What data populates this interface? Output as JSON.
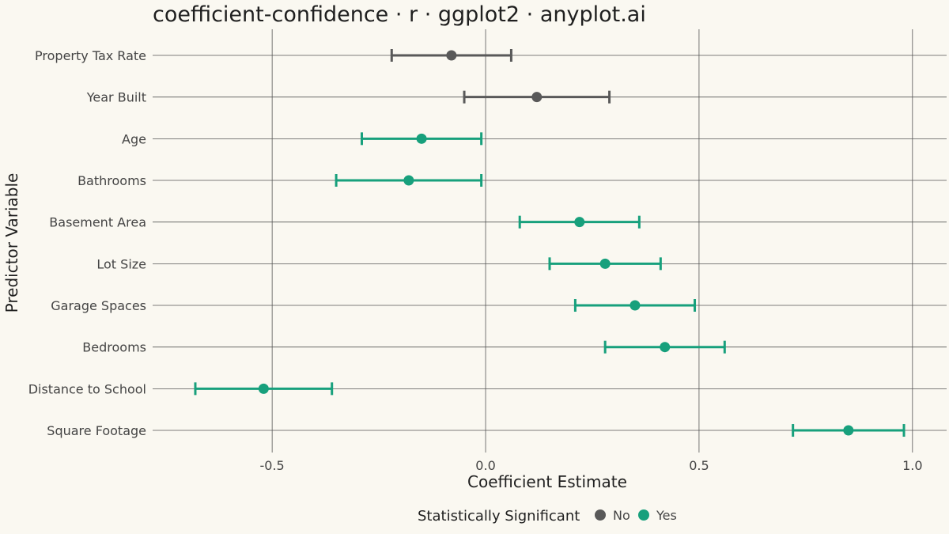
{
  "chart_data": {
    "type": "scatter",
    "title": "coefficient-confidence · r · ggplot2 · anyplot.ai",
    "xlabel": "Coefficient Estimate",
    "ylabel": "Predictor Variable",
    "xlim": [
      -0.78,
      1.08
    ],
    "xticks": [
      -0.5,
      0.0,
      0.5,
      1.0
    ],
    "xtick_labels": [
      "-0.5",
      "0.0",
      "0.5",
      "1.0"
    ],
    "grid": true,
    "legend": {
      "title": "Statistically Significant",
      "position": "bottom",
      "items": [
        {
          "label": "No",
          "color": "#595959"
        },
        {
          "label": "Yes",
          "color": "#17A07C"
        }
      ]
    },
    "colors": {
      "No": "#595959",
      "Yes": "#17A07C"
    },
    "points": [
      {
        "variable": "Property Tax Rate",
        "estimate": -0.08,
        "lower": -0.22,
        "upper": 0.06,
        "significant": "No"
      },
      {
        "variable": "Year Built",
        "estimate": 0.12,
        "lower": -0.05,
        "upper": 0.29,
        "significant": "No"
      },
      {
        "variable": "Age",
        "estimate": -0.15,
        "lower": -0.29,
        "upper": -0.01,
        "significant": "Yes"
      },
      {
        "variable": "Bathrooms",
        "estimate": -0.18,
        "lower": -0.35,
        "upper": -0.01,
        "significant": "Yes"
      },
      {
        "variable": "Basement Area",
        "estimate": 0.22,
        "lower": 0.08,
        "upper": 0.36,
        "significant": "Yes"
      },
      {
        "variable": "Lot Size",
        "estimate": 0.28,
        "lower": 0.15,
        "upper": 0.41,
        "significant": "Yes"
      },
      {
        "variable": "Garage Spaces",
        "estimate": 0.35,
        "lower": 0.21,
        "upper": 0.49,
        "significant": "Yes"
      },
      {
        "variable": "Bedrooms",
        "estimate": 0.42,
        "lower": 0.28,
        "upper": 0.56,
        "significant": "Yes"
      },
      {
        "variable": "Distance to School",
        "estimate": -0.52,
        "lower": -0.68,
        "upper": -0.36,
        "significant": "Yes"
      },
      {
        "variable": "Square Footage",
        "estimate": 0.85,
        "lower": 0.72,
        "upper": 0.98,
        "significant": "Yes"
      }
    ]
  }
}
